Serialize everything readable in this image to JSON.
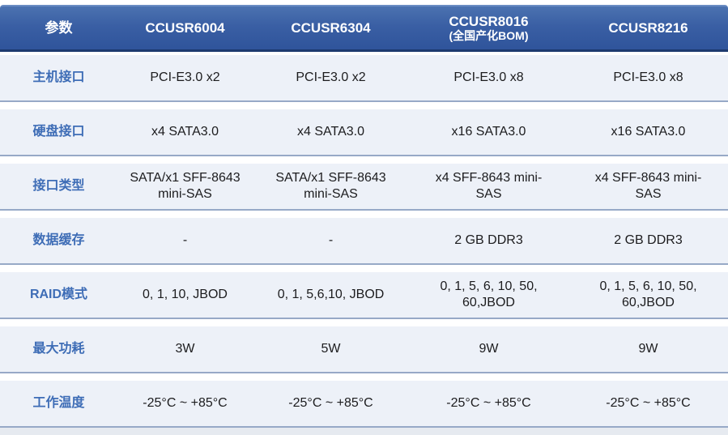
{
  "table": {
    "header": {
      "param_label": "参数",
      "columns": [
        {
          "line1": "CCUSR6004",
          "line2": ""
        },
        {
          "line1": "CCUSR6304",
          "line2": ""
        },
        {
          "line1": "CCUSR8016",
          "line2": "(全国产化BOM)"
        },
        {
          "line1": "CCUSR8216",
          "line2": ""
        }
      ]
    },
    "rows": [
      {
        "label": "主机接口",
        "values": [
          "PCI-E3.0 x2",
          "PCI-E3.0 x2",
          "PCI-E3.0 x8",
          "PCI-E3.0 x8"
        ]
      },
      {
        "label": "硬盘接口",
        "values": [
          "x4 SATA3.0",
          "x4 SATA3.0",
          "x16 SATA3.0",
          "x16 SATA3.0"
        ]
      },
      {
        "label": "接口类型",
        "values": [
          "SATA/x1 SFF-8643 mini-SAS",
          "SATA/x1 SFF-8643 mini-SAS",
          "x4 SFF-8643 mini-SAS",
          "x4 SFF-8643 mini-SAS"
        ]
      },
      {
        "label": "数据缓存",
        "values": [
          "-",
          "-",
          "2 GB DDR3",
          "2 GB DDR3"
        ]
      },
      {
        "label": "RAID模式",
        "values": [
          "0, 1, 10, JBOD",
          "0, 1, 5,6,10, JBOD",
          "0, 1, 5, 6, 10, 50, 60,JBOD",
          "0, 1, 5, 6, 10, 50, 60,JBOD"
        ]
      },
      {
        "label": "最大功耗",
        "values": [
          "3W",
          "5W",
          "9W",
          "9W"
        ]
      },
      {
        "label": "工作温度",
        "values": [
          "-25°C ~ +85°C",
          "-25°C ~ +85°C",
          "-25°C ~ +85°C",
          "-25°C ~ +85°C"
        ]
      }
    ]
  },
  "colors": {
    "header_blue": "#2f549b",
    "header_highlight": "#6a8cc2",
    "header_border_bottom": "#1d3a6e",
    "row_background": "#edf1f8",
    "separator": "#97a9c7",
    "label_blue": "#3e6db6",
    "value_text": "#1c1c1e",
    "bottom_strip": "#e6eaf0"
  }
}
